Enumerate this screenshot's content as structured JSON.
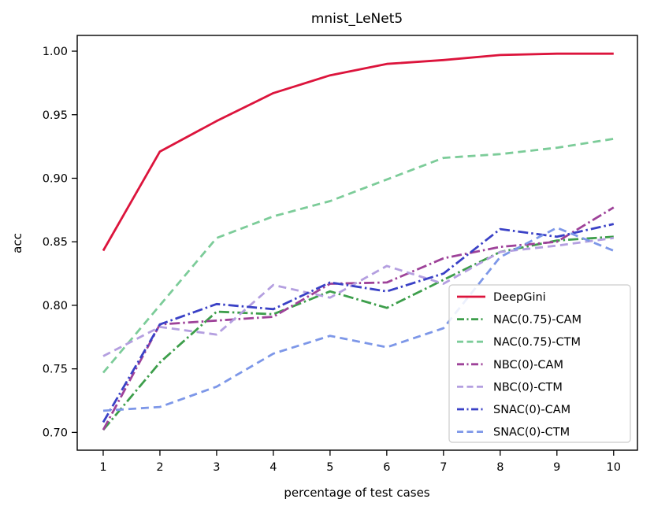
{
  "chart_data": {
    "type": "line",
    "title": "mnist_LeNet5",
    "xlabel": "percentage of test cases",
    "ylabel": "acc",
    "x": [
      1,
      2,
      3,
      4,
      5,
      6,
      7,
      8,
      9,
      10
    ],
    "xlim": [
      0.542,
      10.42
    ],
    "ylim": [
      0.686,
      1.0124
    ],
    "xticks": [
      "1",
      "2",
      "3",
      "4",
      "5",
      "6",
      "7",
      "8",
      "9",
      "10"
    ],
    "yticks": [
      0.7,
      0.75,
      0.8,
      0.85,
      0.9,
      0.95,
      1.0
    ],
    "ytick_labels": [
      "0.70",
      "0.75",
      "0.80",
      "0.85",
      "0.90",
      "0.95",
      "1.00"
    ],
    "grid": false,
    "legend_position": "lower-right-inside",
    "series": [
      {
        "name": "DeepGini",
        "color": "#dc143c",
        "style": "solid",
        "values": [
          0.843,
          0.921,
          0.945,
          0.967,
          0.981,
          0.99,
          0.993,
          0.997,
          0.998,
          0.998
        ]
      },
      {
        "name": "NAC(0.75)-CAM",
        "color": "#3d9e4b",
        "style": "dashdot",
        "values": [
          0.702,
          0.755,
          0.795,
          0.793,
          0.811,
          0.798,
          0.82,
          0.842,
          0.851,
          0.854
        ]
      },
      {
        "name": "NAC(0.75)-CTM",
        "color": "#7ccc99",
        "style": "dashed",
        "values": [
          0.747,
          0.8,
          0.853,
          0.87,
          0.882,
          0.899,
          0.916,
          0.919,
          0.924,
          0.931
        ]
      },
      {
        "name": "NBC(0)-CAM",
        "color": "#9e4299",
        "style": "dashdot",
        "values": [
          0.702,
          0.785,
          0.788,
          0.791,
          0.817,
          0.818,
          0.837,
          0.846,
          0.85,
          0.877
        ]
      },
      {
        "name": "NBC(0)-CTM",
        "color": "#b49fe0",
        "style": "dashed",
        "values": [
          0.76,
          0.783,
          0.777,
          0.816,
          0.806,
          0.831,
          0.817,
          0.842,
          0.847,
          0.853
        ]
      },
      {
        "name": "SNAC(0)-CAM",
        "color": "#3a41c6",
        "style": "dashdot",
        "values": [
          0.708,
          0.785,
          0.801,
          0.797,
          0.818,
          0.811,
          0.825,
          0.86,
          0.854,
          0.864
        ]
      },
      {
        "name": "SNAC(0)-CTM",
        "color": "#7d97e8",
        "style": "dashed",
        "values": [
          0.717,
          0.72,
          0.736,
          0.762,
          0.776,
          0.767,
          0.782,
          0.838,
          0.861,
          0.843
        ]
      }
    ]
  }
}
